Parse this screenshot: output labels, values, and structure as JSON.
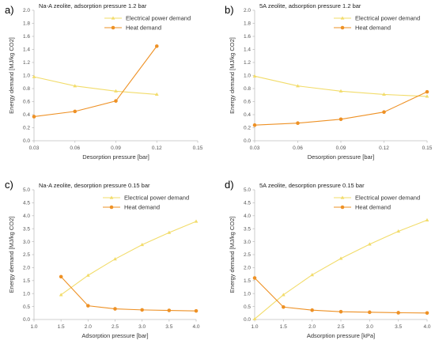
{
  "panels": [
    "a)",
    "b)",
    "c)",
    "d)"
  ],
  "colors": {
    "electrical": "#f2dc6a",
    "heat": "#ee9125",
    "axis": "#bfbfbf",
    "grid": "#d9d9d9"
  },
  "chart_data": [
    {
      "type": "line",
      "title": "Na-A zeolite, adsorption pressure 1.2 bar",
      "xlabel": "Desorption pressure [bar]",
      "ylabel": "Energy demand [MJ/kg CO2]",
      "x_ticks": [
        "0.03",
        "0.06",
        "0.09",
        "0.12",
        "0.15"
      ],
      "y_ticks": [
        "0.0",
        "0.2",
        "0.4",
        "0.6",
        "0.8",
        "1.0",
        "1.2",
        "1.4",
        "1.6",
        "1.8",
        "2.0"
      ],
      "xlim": [
        0.03,
        0.15
      ],
      "ylim": [
        0,
        2.0
      ],
      "grid": false,
      "legend": "top-right",
      "series": [
        {
          "name": "Electrical power demand",
          "x": [
            0.03,
            0.06,
            0.09,
            0.12
          ],
          "values": [
            0.98,
            0.84,
            0.76,
            0.71
          ],
          "marker": "triangle"
        },
        {
          "name": "Heat demand",
          "x": [
            0.03,
            0.06,
            0.09,
            0.12
          ],
          "values": [
            0.37,
            0.45,
            0.61,
            1.45
          ],
          "marker": "circle"
        }
      ]
    },
    {
      "type": "line",
      "title": "5A zeolite, adsorption pressure 1.2 bar",
      "xlabel": "Desorption pressure [bar]",
      "ylabel": "Energy demand [MJ/kg CO2]",
      "x_ticks": [
        "0.03",
        "0.06",
        "0.09",
        "0.12",
        "0.15"
      ],
      "y_ticks": [
        "0.0",
        "0.2",
        "0.4",
        "0.6",
        "0.8",
        "1.0",
        "1.2",
        "1.4",
        "1.6",
        "1.8",
        "2.0"
      ],
      "xlim": [
        0.03,
        0.15
      ],
      "ylim": [
        0,
        2.0
      ],
      "grid": false,
      "legend": "top-right",
      "series": [
        {
          "name": "Electrical power demand",
          "x": [
            0.03,
            0.06,
            0.09,
            0.12,
            0.15
          ],
          "values": [
            0.99,
            0.84,
            0.76,
            0.71,
            0.68
          ],
          "marker": "triangle"
        },
        {
          "name": "Heat demand",
          "x": [
            0.03,
            0.06,
            0.09,
            0.12,
            0.15
          ],
          "values": [
            0.24,
            0.27,
            0.33,
            0.44,
            0.75
          ],
          "marker": "circle"
        }
      ]
    },
    {
      "type": "line",
      "title": "Na-A zeolite, desorption pressure 0.15 bar",
      "xlabel": "Adsorption pressure [bar]",
      "ylabel": "Energy demand [MJ/kg CO2]",
      "x_ticks": [
        "1.0",
        "1.5",
        "2.0",
        "2.5",
        "3.0",
        "3.5",
        "4.0"
      ],
      "y_ticks": [
        "0.0",
        "0.5",
        "1.0",
        "1.5",
        "2.0",
        "2.5",
        "3.0",
        "3.5",
        "4.0",
        "4.5",
        "5.0"
      ],
      "xlim": [
        1.0,
        4.0
      ],
      "ylim": [
        0,
        5.0
      ],
      "grid": false,
      "legend": "top-right",
      "series": [
        {
          "name": "Electrical power demand",
          "x": [
            1.5,
            2.0,
            2.5,
            3.0,
            3.5,
            4.0
          ],
          "values": [
            0.95,
            1.7,
            2.33,
            2.88,
            3.35,
            3.78
          ],
          "marker": "triangle"
        },
        {
          "name": "Heat demand",
          "x": [
            1.5,
            2.0,
            2.5,
            3.0,
            3.5,
            4.0
          ],
          "values": [
            1.65,
            0.53,
            0.41,
            0.37,
            0.35,
            0.33
          ],
          "marker": "circle"
        }
      ]
    },
    {
      "type": "line",
      "title": "5A zeolite, desorption pressure 0.15 bar",
      "xlabel": "Adsorption pressure [kPa]",
      "ylabel": "Energy demand [MJ/kg CO2]",
      "x_ticks": [
        "1.0",
        "1.5",
        "2.0",
        "2.5",
        "3.0",
        "3.5",
        "4.0"
      ],
      "y_ticks": [
        "0.0",
        "0.5",
        "1.0",
        "1.5",
        "2.0",
        "2.5",
        "3.0",
        "3.5",
        "4.0",
        "4.5",
        "5.0"
      ],
      "xlim": [
        1.0,
        4.0
      ],
      "ylim": [
        0,
        5.0
      ],
      "grid": false,
      "legend": "top-right",
      "series": [
        {
          "name": "Electrical power demand",
          "x": [
            1.0,
            1.5,
            2.0,
            2.5,
            3.0,
            3.5,
            4.0
          ],
          "values": [
            0.02,
            0.95,
            1.72,
            2.35,
            2.9,
            3.4,
            3.83
          ],
          "marker": "triangle"
        },
        {
          "name": "Heat demand",
          "x": [
            1.0,
            1.5,
            2.0,
            2.5,
            3.0,
            3.5,
            4.0
          ],
          "values": [
            1.6,
            0.48,
            0.36,
            0.3,
            0.28,
            0.26,
            0.25
          ],
          "marker": "circle"
        }
      ]
    }
  ]
}
